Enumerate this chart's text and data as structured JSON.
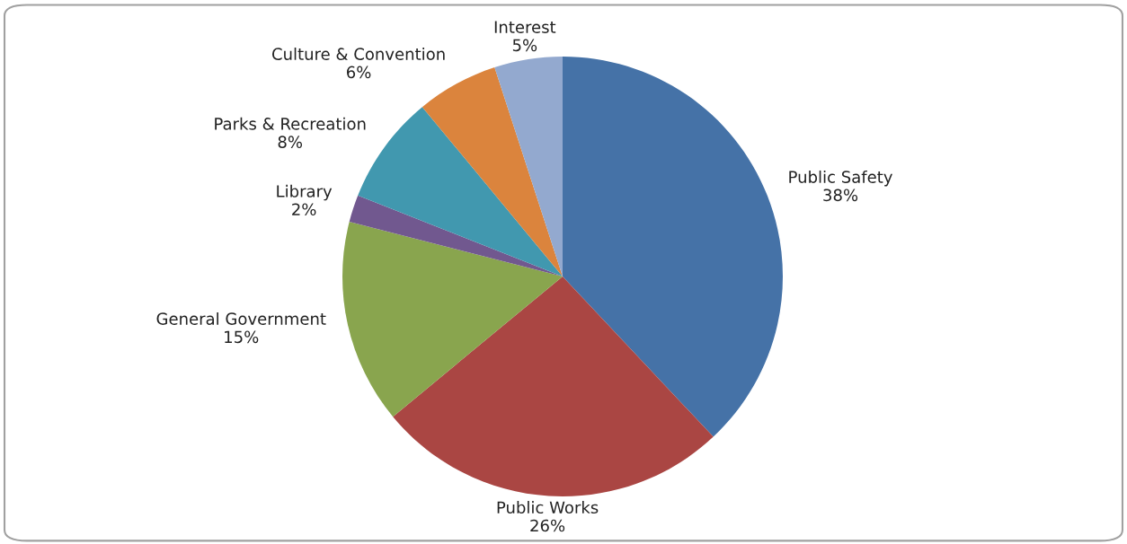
{
  "chart_data": {
    "type": "pie",
    "categories": [
      "Public Safety",
      "Public Works",
      "General Government",
      "Library",
      "Parks & Recreation",
      "Culture & Convention",
      "Interest"
    ],
    "values": [
      38,
      26,
      15,
      2,
      8,
      6,
      5
    ],
    "value_labels": [
      "38%",
      "26%",
      "15%",
      "2%",
      "8%",
      "6%",
      "5%"
    ],
    "colors": [
      "#4572a7",
      "#aa4643",
      "#89a54e",
      "#71588f",
      "#4198af",
      "#db843d",
      "#93a9cf"
    ],
    "legend": false
  }
}
